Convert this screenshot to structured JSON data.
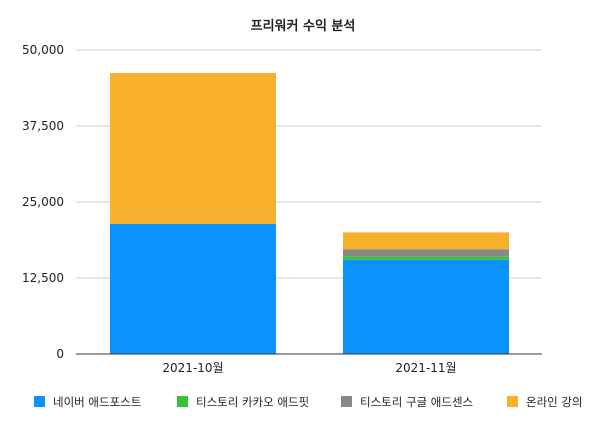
{
  "chart_data": {
    "type": "bar",
    "stacked": true,
    "title": "프리워커 수익 분석",
    "xlabel": "",
    "ylabel": "",
    "categories": [
      "2021-10월",
      "2021-11월"
    ],
    "ylim": [
      0,
      50000
    ],
    "yticks": [
      0,
      12500,
      25000,
      37500,
      50000
    ],
    "ytick_labels": [
      "0",
      "12,500",
      "25,000",
      "37,500",
      "50,000"
    ],
    "grid": true,
    "legend_position": "bottom",
    "series": [
      {
        "name": "네이버 애드포스트",
        "color": "#0a93fa",
        "values": [
          21400,
          15500
        ]
      },
      {
        "name": "티스토리 카카오 애드핏",
        "color": "#36c23a",
        "values": [
          0,
          500
        ]
      },
      {
        "name": "티스토리 구글 애드센스",
        "color": "#888888",
        "values": [
          0,
          1200
        ]
      },
      {
        "name": "온라인 강의",
        "color": "#f6b02c",
        "values": [
          24800,
          2800
        ]
      }
    ]
  }
}
